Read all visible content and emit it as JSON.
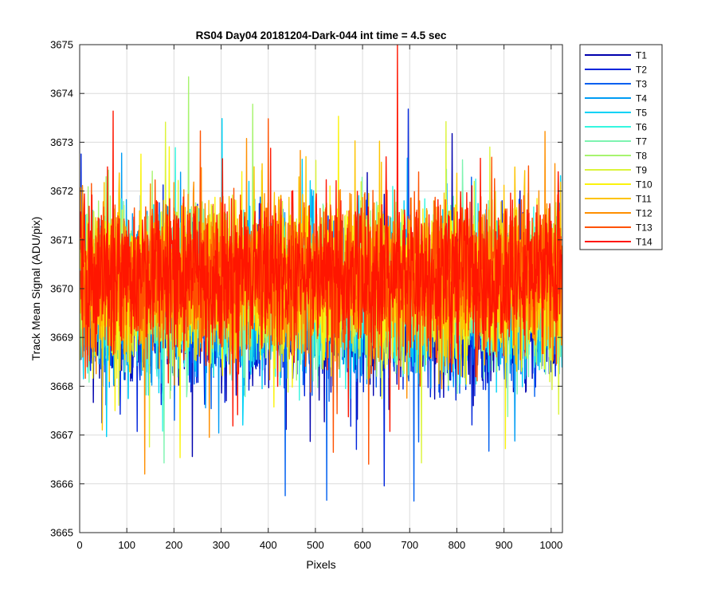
{
  "chart_data": {
    "type": "line",
    "title": "RS04 Day04 20181204-Dark-044 int time = 4.5 sec",
    "xlabel": "Pixels",
    "ylabel": "Track Mean Signal (ADU/pix)",
    "xlim": [
      0,
      1024
    ],
    "ylim": [
      3665,
      3675
    ],
    "xticks": [
      0,
      100,
      200,
      300,
      400,
      500,
      600,
      700,
      800,
      900,
      1000
    ],
    "yticks": [
      3665,
      3666,
      3667,
      3668,
      3669,
      3670,
      3671,
      3672,
      3673,
      3674,
      3675
    ],
    "grid": true,
    "legend_position": "outside-top-right",
    "n_points_per_series": 1024,
    "series": [
      {
        "name": "T1",
        "color": "#0000ad",
        "mean": 3669.5,
        "amplitude": 1.5
      },
      {
        "name": "T2",
        "color": "#0025dc",
        "mean": 3669.6,
        "amplitude": 1.5
      },
      {
        "name": "T3",
        "color": "#0060f0",
        "mean": 3669.7,
        "amplitude": 1.5
      },
      {
        "name": "T4",
        "color": "#009cf4",
        "mean": 3669.8,
        "amplitude": 1.5
      },
      {
        "name": "T5",
        "color": "#00d2f6",
        "mean": 3669.9,
        "amplitude": 1.5
      },
      {
        "name": "T6",
        "color": "#35f6e0",
        "mean": 3669.9,
        "amplitude": 1.5
      },
      {
        "name": "T7",
        "color": "#7df4b0",
        "mean": 3670.0,
        "amplitude": 1.5
      },
      {
        "name": "T8",
        "color": "#a7f46f",
        "mean": 3670.0,
        "amplitude": 1.5
      },
      {
        "name": "T9",
        "color": "#dcf43b",
        "mean": 3670.1,
        "amplitude": 1.5
      },
      {
        "name": "T10",
        "color": "#fbf30d",
        "mean": 3670.1,
        "amplitude": 1.5
      },
      {
        "name": "T11",
        "color": "#fdc300",
        "mean": 3670.2,
        "amplitude": 1.5
      },
      {
        "name": "T12",
        "color": "#ff8f00",
        "mean": 3670.2,
        "amplitude": 1.5
      },
      {
        "name": "T13",
        "color": "#ff5200",
        "mean": 3670.3,
        "amplitude": 1.5
      },
      {
        "name": "T14",
        "color": "#ff1600",
        "mean": 3670.3,
        "amplitude": 1.5
      }
    ]
  }
}
